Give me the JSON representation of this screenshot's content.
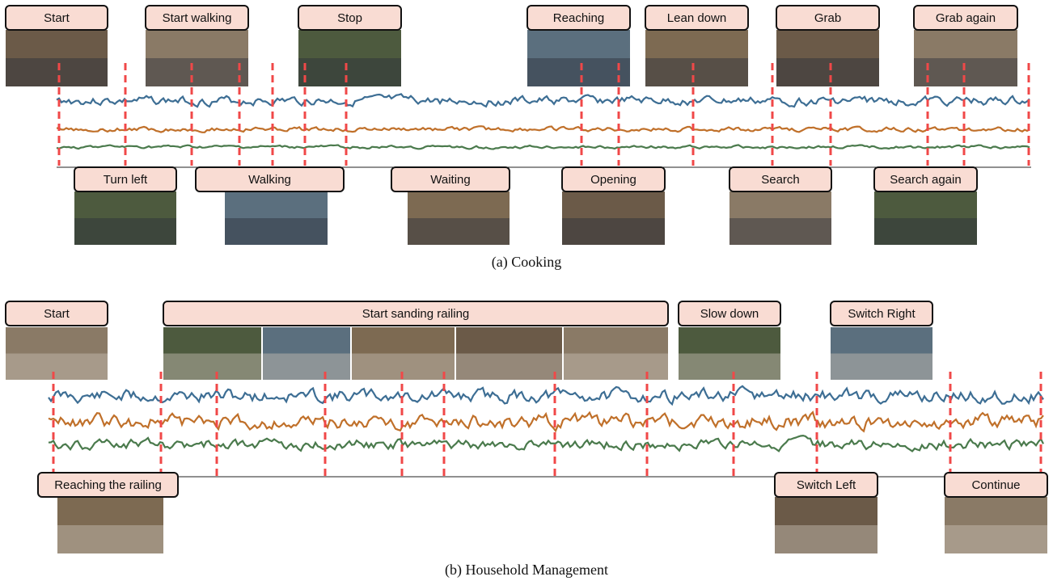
{
  "panels": [
    {
      "caption": "(a) Cooking",
      "top_labels": [
        "Start",
        "Start walking",
        "Stop",
        "Reaching",
        "Lean down",
        "Grab",
        "Grab again"
      ],
      "bottom_labels": [
        "Turn left",
        "Walking",
        "Waiting",
        "Opening",
        "Search",
        "Search again"
      ]
    },
    {
      "caption": "(b) Household Management",
      "top_labels": [
        "Start",
        "Start sanding railing",
        "Slow down",
        "Switch Right"
      ],
      "bottom_labels": [
        "Reaching the railing",
        "Switch Left",
        "Continue"
      ]
    }
  ]
}
